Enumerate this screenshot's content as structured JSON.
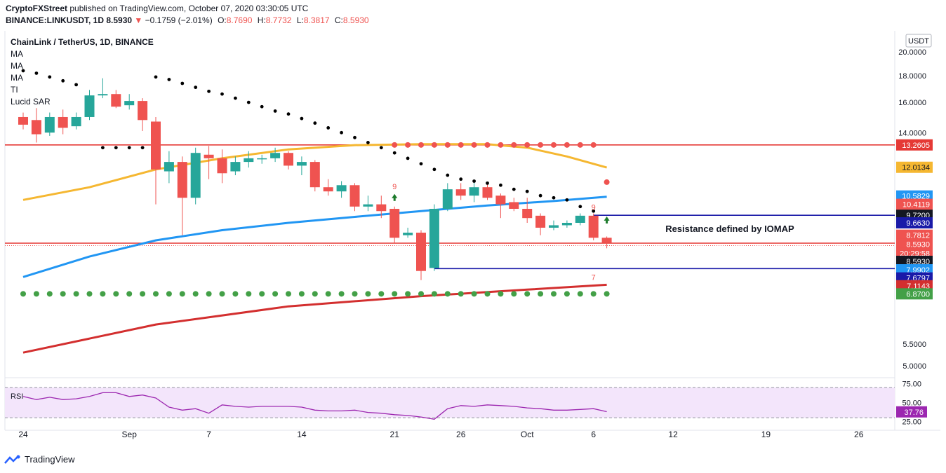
{
  "header": {
    "publisher": "CryptoFXStreet",
    "published_text": "published on TradingView.com, October 07, 2020 03:30:05 UTC",
    "symbol_line": "BINANCE:LINKUSDT, 1D",
    "last_price": "8.5930",
    "change": "−0.1759 (−2.01%)",
    "ohlc": [
      {
        "label": "O:",
        "value": "8.7690"
      },
      {
        "label": "H:",
        "value": "8.7732"
      },
      {
        "label": "L:",
        "value": "8.3817"
      },
      {
        "label": "C:",
        "value": "8.5930"
      }
    ]
  },
  "footer": {
    "brand": "TradingView"
  },
  "chart_data": {
    "type": "candlestick",
    "title": "ChainLink / TetherUS, 1D, BINANCE",
    "currency": "USDT",
    "indicators_legend": [
      "MA",
      "MA",
      "MA",
      "TI",
      "Lucid SAR"
    ],
    "y_axis": {
      "scale": "log",
      "ticks": [
        "20.0000",
        "18.0000",
        "16.0000",
        "14.0000",
        "5.5000",
        "5.0000"
      ]
    },
    "x_axis": {
      "ticks": [
        {
          "label": "24",
          "i": 0
        },
        {
          "label": "Sep",
          "i": 8
        },
        {
          "label": "7",
          "i": 14
        },
        {
          "label": "14",
          "i": 21
        },
        {
          "label": "21",
          "i": 28
        },
        {
          "label": "26",
          "i": 33
        },
        {
          "label": "Oct",
          "i": 38
        },
        {
          "label": "6",
          "i": 43
        },
        {
          "label": "12",
          "i": 49
        },
        {
          "label": "19",
          "i": 56
        },
        {
          "label": "26",
          "i": 63
        }
      ]
    },
    "candles": [
      {
        "o": 15.0,
        "h": 15.3,
        "l": 14.2,
        "c": 14.5
      },
      {
        "o": 14.8,
        "h": 15.6,
        "l": 13.4,
        "c": 13.9
      },
      {
        "o": 14.0,
        "h": 15.3,
        "l": 13.8,
        "c": 15.0
      },
      {
        "o": 15.0,
        "h": 15.5,
        "l": 13.9,
        "c": 14.3
      },
      {
        "o": 14.4,
        "h": 15.3,
        "l": 14.2,
        "c": 15.0
      },
      {
        "o": 15.0,
        "h": 16.9,
        "l": 14.8,
        "c": 16.5
      },
      {
        "o": 16.5,
        "h": 17.8,
        "l": 16.3,
        "c": 16.6
      },
      {
        "o": 16.6,
        "h": 16.9,
        "l": 15.6,
        "c": 15.7
      },
      {
        "o": 15.8,
        "h": 16.6,
        "l": 15.5,
        "c": 16.1
      },
      {
        "o": 16.1,
        "h": 16.3,
        "l": 14.1,
        "c": 14.8
      },
      {
        "o": 14.7,
        "h": 15.0,
        "l": 10.2,
        "c": 11.9
      },
      {
        "o": 11.8,
        "h": 12.9,
        "l": 11.2,
        "c": 12.3
      },
      {
        "o": 12.3,
        "h": 12.6,
        "l": 8.9,
        "c": 10.5
      },
      {
        "o": 10.5,
        "h": 13.1,
        "l": 10.2,
        "c": 12.8
      },
      {
        "o": 12.7,
        "h": 13.2,
        "l": 11.4,
        "c": 12.5
      },
      {
        "o": 12.5,
        "h": 13.0,
        "l": 11.2,
        "c": 11.7
      },
      {
        "o": 11.8,
        "h": 12.6,
        "l": 11.6,
        "c": 12.3
      },
      {
        "o": 12.3,
        "h": 12.9,
        "l": 12.0,
        "c": 12.5
      },
      {
        "o": 12.5,
        "h": 12.7,
        "l": 12.2,
        "c": 12.5
      },
      {
        "o": 12.5,
        "h": 13.1,
        "l": 12.3,
        "c": 12.8
      },
      {
        "o": 12.8,
        "h": 12.9,
        "l": 11.9,
        "c": 12.1
      },
      {
        "o": 12.1,
        "h": 12.6,
        "l": 11.6,
        "c": 12.3
      },
      {
        "o": 12.3,
        "h": 12.4,
        "l": 10.8,
        "c": 11.0
      },
      {
        "o": 11.0,
        "h": 11.4,
        "l": 10.6,
        "c": 10.8
      },
      {
        "o": 10.8,
        "h": 11.3,
        "l": 10.5,
        "c": 11.1
      },
      {
        "o": 11.1,
        "h": 11.2,
        "l": 9.9,
        "c": 10.1
      },
      {
        "o": 10.1,
        "h": 10.6,
        "l": 9.9,
        "c": 10.2
      },
      {
        "o": 10.2,
        "h": 10.6,
        "l": 9.6,
        "c": 9.9
      },
      {
        "o": 10.0,
        "h": 10.1,
        "l": 8.6,
        "c": 8.8
      },
      {
        "o": 8.9,
        "h": 9.2,
        "l": 8.8,
        "c": 9.0
      },
      {
        "o": 9.0,
        "h": 9.1,
        "l": 7.3,
        "c": 7.6
      },
      {
        "o": 7.7,
        "h": 10.2,
        "l": 7.6,
        "c": 10.0
      },
      {
        "o": 10.0,
        "h": 11.2,
        "l": 9.9,
        "c": 10.9
      },
      {
        "o": 10.9,
        "h": 11.2,
        "l": 10.4,
        "c": 10.6
      },
      {
        "o": 10.6,
        "h": 11.3,
        "l": 10.3,
        "c": 11.0
      },
      {
        "o": 11.0,
        "h": 11.2,
        "l": 10.4,
        "c": 10.5
      },
      {
        "o": 10.6,
        "h": 10.7,
        "l": 9.6,
        "c": 10.2
      },
      {
        "o": 10.3,
        "h": 10.5,
        "l": 9.9,
        "c": 10.0
      },
      {
        "o": 10.0,
        "h": 10.5,
        "l": 9.4,
        "c": 9.6
      },
      {
        "o": 9.7,
        "h": 9.8,
        "l": 8.9,
        "c": 9.2
      },
      {
        "o": 9.2,
        "h": 9.5,
        "l": 9.1,
        "c": 9.3
      },
      {
        "o": 9.3,
        "h": 9.5,
        "l": 9.2,
        "c": 9.4
      },
      {
        "o": 9.4,
        "h": 9.8,
        "l": 9.3,
        "c": 9.7
      },
      {
        "o": 9.7,
        "h": 9.8,
        "l": 8.7,
        "c": 8.8
      },
      {
        "o": 8.8,
        "h": 8.85,
        "l": 8.4,
        "c": 8.6
      }
    ],
    "moving_averages": [
      {
        "name": "MA",
        "color": "#f5b731",
        "points": [
          [
            0,
            10.4
          ],
          [
            5,
            11.0
          ],
          [
            10,
            11.9
          ],
          [
            15,
            12.5
          ],
          [
            20,
            13.0
          ],
          [
            25,
            13.25
          ],
          [
            30,
            13.3
          ],
          [
            35,
            13.3
          ],
          [
            38,
            13.1
          ],
          [
            41,
            12.6
          ],
          [
            44,
            12.0
          ]
        ]
      },
      {
        "name": "MA",
        "color": "#2196f3",
        "points": [
          [
            0,
            7.4
          ],
          [
            5,
            8.1
          ],
          [
            10,
            8.7
          ],
          [
            15,
            9.1
          ],
          [
            20,
            9.4
          ],
          [
            25,
            9.65
          ],
          [
            30,
            9.9
          ],
          [
            35,
            10.15
          ],
          [
            40,
            10.35
          ],
          [
            44,
            10.55
          ]
        ]
      },
      {
        "name": "MA",
        "color": "#d32f2f",
        "points": [
          [
            0,
            5.3
          ],
          [
            10,
            6.0
          ],
          [
            20,
            6.5
          ],
          [
            30,
            6.8
          ],
          [
            38,
            7.0
          ],
          [
            44,
            7.15
          ]
        ]
      }
    ],
    "lucid_sar": [
      {
        "i": 0,
        "v": 18.4
      },
      {
        "i": 1,
        "v": 18.2
      },
      {
        "i": 2,
        "v": 17.9
      },
      {
        "i": 3,
        "v": 17.6
      },
      {
        "i": 4,
        "v": 17.3
      },
      {
        "i": 6,
        "v": 13.1
      },
      {
        "i": 7,
        "v": 13.1
      },
      {
        "i": 8,
        "v": 13.1
      },
      {
        "i": 9,
        "v": 13.1
      },
      {
        "i": 10,
        "v": 17.9
      },
      {
        "i": 11,
        "v": 17.7
      },
      {
        "i": 12,
        "v": 17.4
      },
      {
        "i": 13,
        "v": 17.1
      },
      {
        "i": 14,
        "v": 16.8
      },
      {
        "i": 15,
        "v": 16.6
      },
      {
        "i": 16,
        "v": 16.3
      },
      {
        "i": 17,
        "v": 16.0
      },
      {
        "i": 18,
        "v": 15.7
      },
      {
        "i": 19,
        "v": 15.4
      },
      {
        "i": 20,
        "v": 15.2
      },
      {
        "i": 21,
        "v": 14.9
      },
      {
        "i": 22,
        "v": 14.6
      },
      {
        "i": 23,
        "v": 14.3
      },
      {
        "i": 24,
        "v": 14.0
      },
      {
        "i": 25,
        "v": 13.7
      },
      {
        "i": 26,
        "v": 13.4
      },
      {
        "i": 27,
        "v": 13.1
      },
      {
        "i": 28,
        "v": 12.8
      },
      {
        "i": 29,
        "v": 12.5
      },
      {
        "i": 30,
        "v": 12.2
      },
      {
        "i": 31,
        "v": 11.9
      },
      {
        "i": 32,
        "v": 11.6
      },
      {
        "i": 33,
        "v": 11.4
      },
      {
        "i": 34,
        "v": 11.3
      },
      {
        "i": 35,
        "v": 11.2
      },
      {
        "i": 36,
        "v": 11.1
      },
      {
        "i": 37,
        "v": 10.9
      },
      {
        "i": 38,
        "v": 10.8
      },
      {
        "i": 39,
        "v": 10.6
      },
      {
        "i": 40,
        "v": 10.5
      },
      {
        "i": 41,
        "v": 10.4
      },
      {
        "i": 42,
        "v": 10.1
      },
      {
        "i": 43,
        "v": 9.9
      }
    ],
    "red_dots_value": 13.26,
    "red_dots_range": [
      28,
      43
    ],
    "green_dots_value": 6.87,
    "green_dots_range": [
      0,
      44
    ],
    "horizontal_lines": [
      {
        "value": 13.2605,
        "color": "#e53935"
      },
      {
        "value": 9.72,
        "color": "#1a1aa8",
        "from_i": 43
      },
      {
        "value": 8.593,
        "color": "#e53935"
      },
      {
        "value": 7.6797,
        "color": "#1a1aa8",
        "from_i": 31
      }
    ],
    "annotation": {
      "text": "Resistance defined by IOMAP",
      "i": 48
    },
    "td_labels": [
      {
        "text": "9",
        "i": 28,
        "color": "#ef5350",
        "v": 10.9
      },
      {
        "text": "9",
        "i": 43,
        "color": "#ef5350",
        "v": 9.95
      },
      {
        "text": "7",
        "i": 43,
        "color": "#ef5350",
        "v": 7.3
      }
    ],
    "price_labels": [
      {
        "value": "13.2605",
        "v": 13.2605,
        "bg": "#e53935"
      },
      {
        "value": "12.0134",
        "v": 12.0134,
        "bg": "#f5b731",
        "fg": "#131722"
      },
      {
        "value": "10.5829",
        "v": 10.5829,
        "bg": "#2196f3"
      },
      {
        "value": "10.4119",
        "v": 10.2,
        "bg": "#ef5350"
      },
      {
        "value": "9.7200",
        "v": 9.72,
        "bg": "#131722"
      },
      {
        "value": "9.6630",
        "v": 9.4,
        "bg": "#1a1aa8"
      },
      {
        "value": "8.7812",
        "v": 8.9,
        "bg": "#ef5350"
      },
      {
        "value": "8.5930",
        "v": 8.55,
        "bg": "#ef5350"
      },
      {
        "value": "20:29:58",
        "v": 8.22,
        "bg": "#ef5350"
      },
      {
        "value": "8.5930",
        "v": 7.93,
        "bg": "#131722"
      },
      {
        "value": "7.9902",
        "v": 7.64,
        "bg": "#2196f3"
      },
      {
        "value": "7.6797",
        "v": 7.37,
        "bg": "#1a1aa8"
      },
      {
        "value": "7.1143",
        "v": 7.12,
        "bg": "#d32f2f"
      },
      {
        "value": "6.8700",
        "v": 6.87,
        "bg": "#43a047"
      }
    ],
    "rsi": {
      "label": "RSI",
      "ticks": [
        "75.00",
        "50.00",
        "25.00"
      ],
      "upper": 70,
      "lower": 30,
      "last": "37.76",
      "values": [
        58,
        54,
        57,
        54,
        55,
        58,
        63,
        63,
        58,
        60,
        56,
        44,
        40,
        42,
        36,
        47,
        45,
        44,
        45,
        45,
        45,
        44,
        40,
        39,
        39,
        40,
        37,
        36,
        34,
        33,
        31,
        28,
        42,
        46,
        45,
        47,
        46,
        45,
        43,
        42,
        40,
        40,
        41,
        42,
        38
      ]
    }
  }
}
